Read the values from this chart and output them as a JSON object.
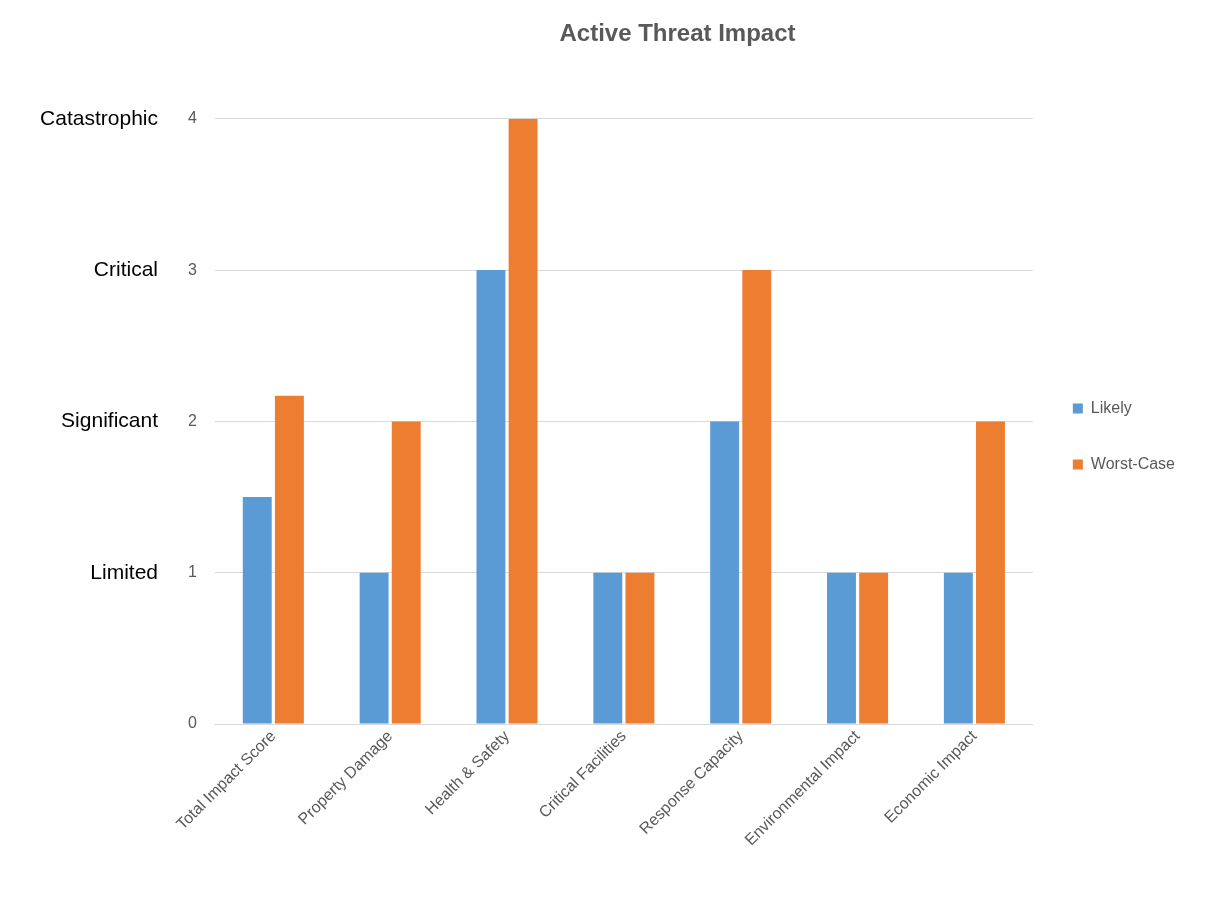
{
  "chart_data": {
    "type": "bar",
    "title": "Active Threat Impact",
    "categories": [
      "Total Impact Score",
      "Property Damage",
      "Health & Safety",
      "Critical Facilities",
      "Response Capacity",
      "Environmental Impact",
      "Economic Impact"
    ],
    "series": [
      {
        "name": "Likely",
        "color": "#5b9bd5",
        "values": [
          1.5,
          1,
          3,
          1,
          2,
          1,
          1
        ]
      },
      {
        "name": "Worst-Case",
        "color": "#ed7d31",
        "values": [
          2.17,
          2,
          4,
          1,
          3,
          1,
          2
        ]
      }
    ],
    "ylim": [
      0,
      4
    ],
    "yticks": [
      0,
      1,
      2,
      3,
      4
    ],
    "grid": "y",
    "legend": "right",
    "annotations": [
      "Limited",
      "Significant",
      "Critical",
      "Catastrophic"
    ]
  }
}
